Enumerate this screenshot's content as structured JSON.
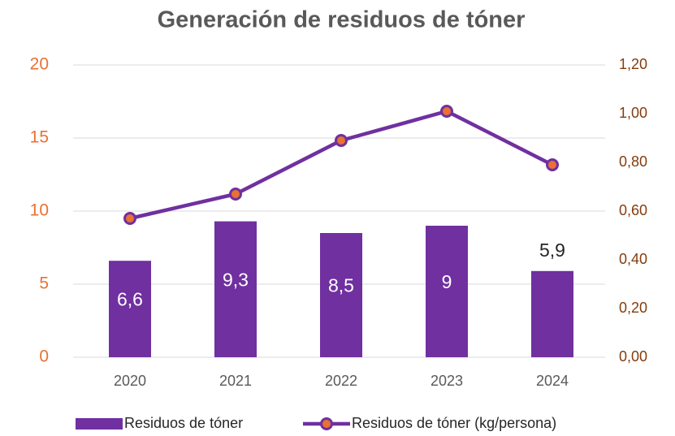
{
  "chart_data": {
    "type": "bar_line",
    "title": "Generación de residuos de tóner",
    "categories": [
      "2020",
      "2021",
      "2022",
      "2023",
      "2024"
    ],
    "series": [
      {
        "name": "Residuos de tóner",
        "type": "bar",
        "color": "#7030a0",
        "values": [
          6.6,
          9.3,
          8.5,
          9,
          5.9
        ],
        "value_labels": [
          "6,6",
          "9,3",
          "8,5",
          "9",
          "5,9"
        ]
      },
      {
        "name": "Residuos de tóner (kg/persona)",
        "type": "line",
        "axis": "y2",
        "color": "#7030a0",
        "marker_color": "#e97132",
        "values": [
          0.57,
          0.67,
          0.89,
          1.01,
          0.79
        ]
      }
    ],
    "ylim": [
      0,
      20
    ],
    "yticks": [
      0,
      5,
      10,
      15,
      20
    ],
    "y2lim": [
      0,
      1.2
    ],
    "y2ticks": [
      {
        "value": 0,
        "label": "0,00"
      },
      {
        "value": 0.2,
        "label": "0,20"
      },
      {
        "value": 0.4,
        "label": "0,40"
      },
      {
        "value": 0.6,
        "label": "0,60"
      },
      {
        "value": 0.8,
        "label": "0,80"
      },
      {
        "value": 1.0,
        "label": "1,00"
      },
      {
        "value": 1.2,
        "label": "1,20"
      }
    ],
    "grid": true,
    "legend": "bottom"
  }
}
